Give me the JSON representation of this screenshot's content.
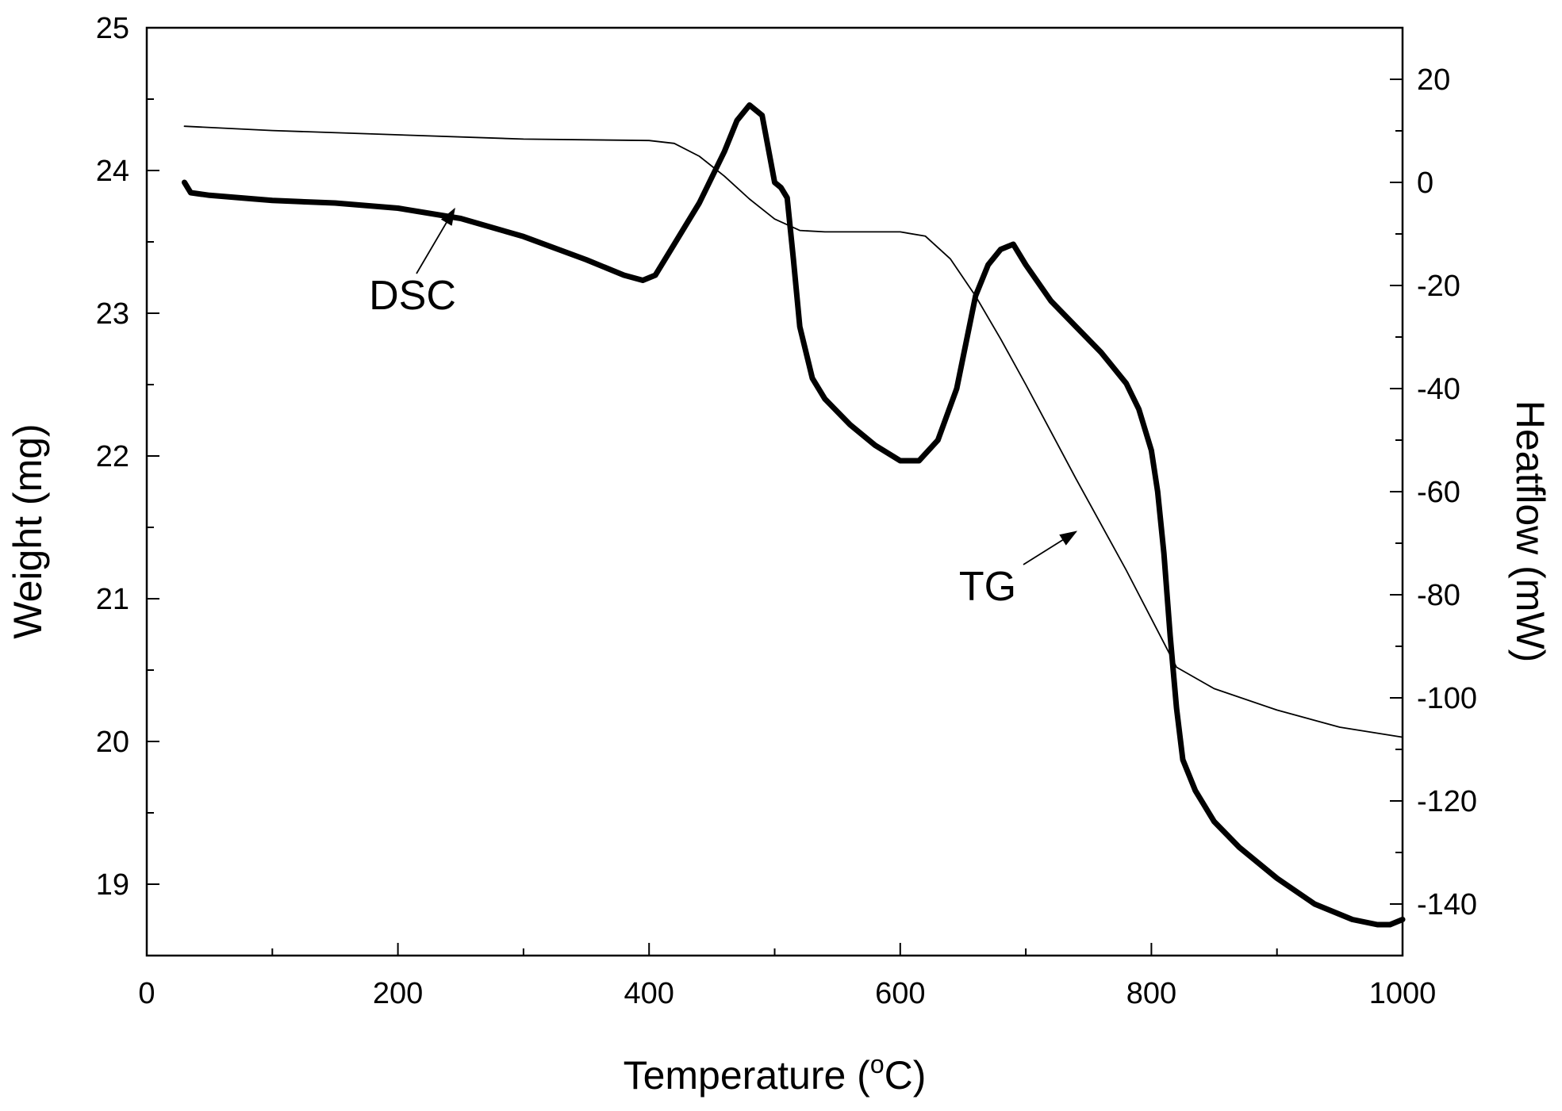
{
  "chart_data": {
    "type": "line",
    "title": "",
    "xlabel": "Temperature (°C)",
    "xlabel_parts": {
      "main": "Temperature (",
      "sup": "o",
      "unit": "C)"
    },
    "ylabel_left": "Weight (mg)",
    "ylabel_right": "Heatflow (mW)",
    "xlim": [
      0,
      1000
    ],
    "ylim_left": [
      18.5,
      25
    ],
    "ylim_right": [
      -150,
      30
    ],
    "grid": false,
    "x_ticks": [
      0,
      200,
      400,
      600,
      800,
      1000
    ],
    "x_tick_labels": [
      "0",
      "200",
      "400",
      "600",
      "800",
      "1000"
    ],
    "left_ticks": [
      19,
      20,
      21,
      22,
      23,
      24,
      25
    ],
    "left_tick_labels": [
      "19",
      "20",
      "21",
      "22",
      "23",
      "24",
      "25"
    ],
    "right_ticks": [
      20,
      0,
      -20,
      -40,
      -60,
      -80,
      -100,
      -120,
      -140
    ],
    "right_tick_labels": [
      "20",
      "0",
      "-20",
      "-40",
      "-60",
      "-80",
      "-100",
      "-120",
      "-140"
    ],
    "series": [
      {
        "name": "TG",
        "axis": "left",
        "style": "thin",
        "x": [
          30,
          100,
          200,
          300,
          400,
          420,
          440,
          460,
          480,
          500,
          520,
          540,
          560,
          580,
          600,
          620,
          640,
          660,
          680,
          700,
          720,
          740,
          760,
          780,
          800,
          820,
          850,
          900,
          950,
          1000
        ],
        "y": [
          24.31,
          24.28,
          24.25,
          24.22,
          24.21,
          24.19,
          24.1,
          23.96,
          23.8,
          23.66,
          23.58,
          23.57,
          23.57,
          23.57,
          23.57,
          23.54,
          23.38,
          23.12,
          22.82,
          22.5,
          22.17,
          21.84,
          21.52,
          21.2,
          20.86,
          20.52,
          20.37,
          20.22,
          20.1,
          20.03
        ]
      },
      {
        "name": "DSC",
        "axis": "right",
        "style": "thick",
        "x": [
          30,
          35,
          50,
          100,
          150,
          200,
          250,
          300,
          350,
          380,
          395,
          405,
          420,
          440,
          460,
          470,
          480,
          490,
          500,
          505,
          510,
          515,
          520,
          530,
          540,
          560,
          580,
          600,
          615,
          630,
          645,
          660,
          670,
          680,
          690,
          700,
          720,
          740,
          760,
          780,
          790,
          800,
          805,
          810,
          815,
          820,
          825,
          835,
          850,
          870,
          900,
          930,
          960,
          980,
          990,
          1000
        ],
        "y": [
          0,
          -2,
          -2.5,
          -3.5,
          -4,
          -5,
          -7,
          -10.5,
          -15,
          -18,
          -19,
          -18,
          -12,
          -4,
          6,
          12,
          15,
          13,
          0,
          -1,
          -3,
          -15,
          -28,
          -38,
          -42,
          -47,
          -51,
          -54,
          -54,
          -50,
          -40,
          -22,
          -16,
          -13,
          -12,
          -16,
          -23,
          -28,
          -33,
          -39,
          -44,
          -52,
          -60,
          -72,
          -88,
          -102,
          -112,
          -118,
          -124,
          -129,
          -135,
          -140,
          -143,
          -144,
          -144,
          -143
        ]
      }
    ],
    "annotations": [
      {
        "text": "DSC",
        "target_series": "DSC",
        "arrow_to_x": 245,
        "arrow_to_y_left": 23.73
      },
      {
        "text": "TG",
        "target_series": "TG",
        "arrow_to_x": 740,
        "arrow_to_y_left": 21.47
      }
    ]
  }
}
